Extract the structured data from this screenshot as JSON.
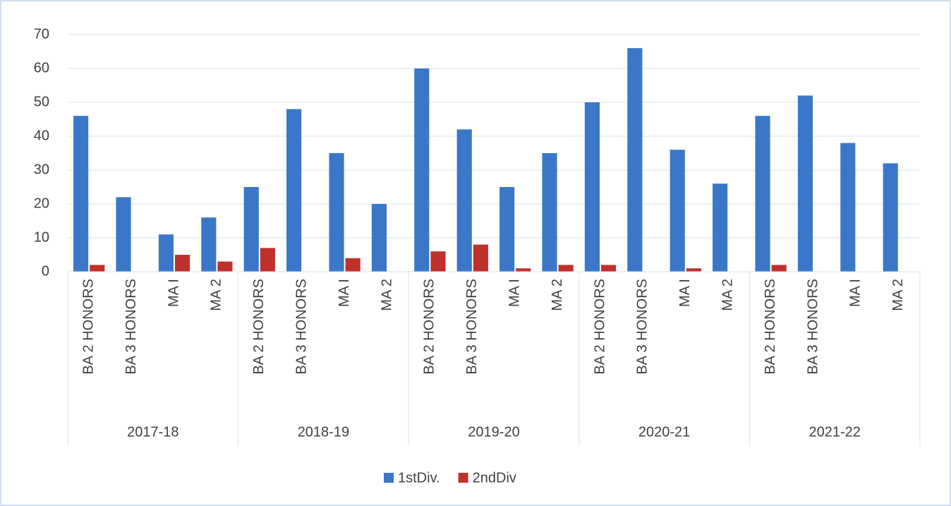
{
  "chart_data": {
    "type": "bar",
    "groups": [
      {
        "label": "2017-18",
        "categories": [
          "BA 2 HONORS",
          "BA 3 HONORS",
          "MA I",
          "MA 2"
        ]
      },
      {
        "label": "2018-19",
        "categories": [
          "BA 2 HONORS",
          "BA 3 HONORS",
          "MA I",
          "MA 2"
        ]
      },
      {
        "label": "2019-20",
        "categories": [
          "BA 2 HONORS",
          "BA 3 HONORS",
          "MA I",
          "MA 2"
        ]
      },
      {
        "label": "2020-21",
        "categories": [
          "BA 2 HONORS",
          "BA 3 HONORS",
          "MA I",
          "MA 2"
        ]
      },
      {
        "label": "2021-22",
        "categories": [
          "BA 2 HONORS",
          "BA 3 HONORS",
          "MA I",
          "MA 2"
        ]
      }
    ],
    "series": [
      {
        "name": "1stDiv.",
        "color": "#3a77c8",
        "values": [
          46,
          22,
          11,
          16,
          25,
          48,
          35,
          20,
          60,
          42,
          25,
          35,
          50,
          66,
          36,
          26,
          46,
          52,
          38,
          32
        ]
      },
      {
        "name": "2ndDiv",
        "color": "#c0312c",
        "values": [
          2,
          0,
          5,
          3,
          7,
          0,
          4,
          0,
          6,
          8,
          1,
          2,
          2,
          0,
          1,
          0,
          2,
          0,
          0,
          0
        ]
      }
    ],
    "ylim": [
      0,
      70
    ],
    "yticks": [
      0,
      10,
      20,
      30,
      40,
      50,
      60,
      70
    ],
    "grid": true,
    "legend": "bottom"
  }
}
